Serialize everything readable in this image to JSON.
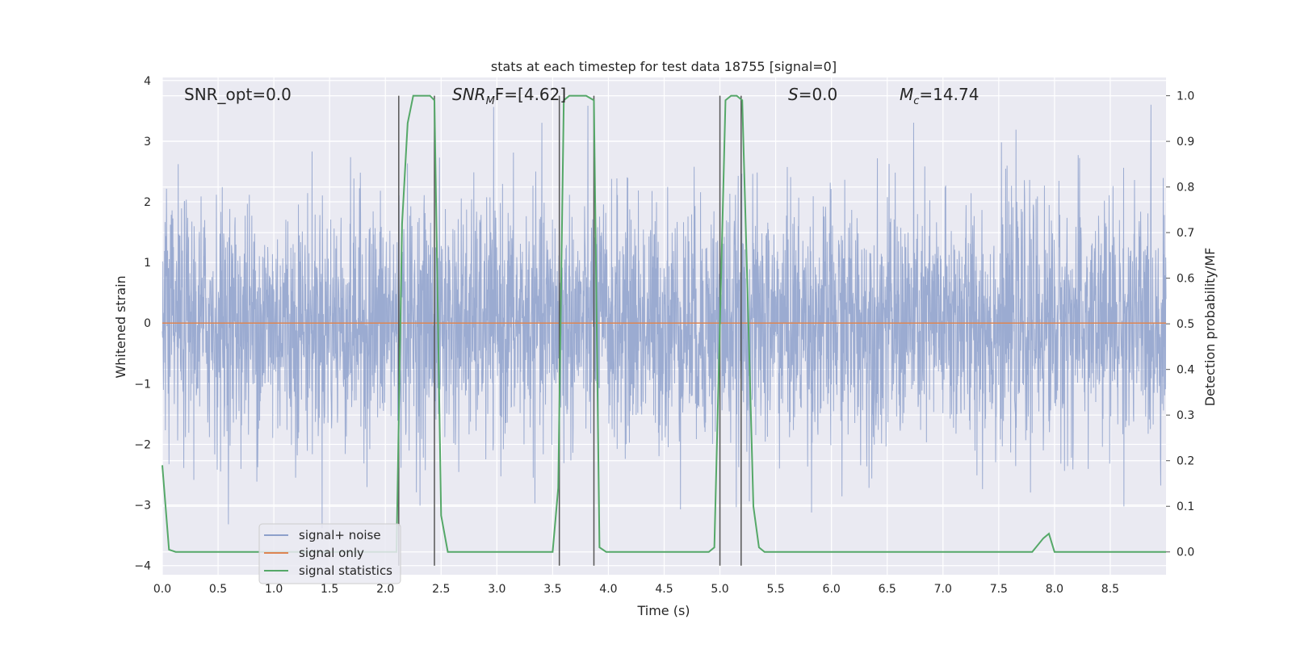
{
  "chart_data": {
    "type": "line",
    "title": "stats at each timestep for test data 18755 [signal=0]",
    "xlabel": "Time (s)",
    "ylabel_left": "Whitened strain",
    "ylabel_right": "Detection probability/MF",
    "xlim": [
      0,
      9
    ],
    "ylim_left": [
      -4.15,
      4.05
    ],
    "ylim_right": [
      -0.05,
      1.04
    ],
    "grid": true,
    "legend_position": "lower-left",
    "x_ticks": [
      "0.0",
      "0.5",
      "1.0",
      "1.5",
      "2.0",
      "2.5",
      "3.0",
      "3.5",
      "4.0",
      "4.5",
      "5.0",
      "5.5",
      "6.0",
      "6.5",
      "7.0",
      "7.5",
      "8.0",
      "8.5"
    ],
    "y_ticks_left": [
      "4",
      "3",
      "2",
      "1",
      "0",
      "−1",
      "−2",
      "−3",
      "−4"
    ],
    "y_ticks_right": [
      "1.0",
      "0.9",
      "0.8",
      "0.7",
      "0.6",
      "0.5",
      "0.4",
      "0.3",
      "0.2",
      "0.1",
      "0.0"
    ],
    "annotations": {
      "snr_opt": "SNR_opt=0.0",
      "snr_mf_base": "SNR",
      "snr_mf_sub": "M",
      "snr_mf_tail": "F=[4.62]",
      "s_base": "S",
      "s_tail": "=0.0",
      "mc_base": "M",
      "mc_sub": "c",
      "mc_tail": "=14.74"
    },
    "series": [
      {
        "name": "signal+ noise",
        "color": "#8da0cb",
        "axis": "left",
        "description": "whitened strain noise, approx. gaussian, amplitude within about ±3.5"
      },
      {
        "name": "signal only",
        "color": "#dd8452",
        "axis": "left",
        "x": [
          0,
          9
        ],
        "y": [
          0,
          0
        ]
      },
      {
        "name": "signal statistics",
        "color": "#55a868",
        "axis": "right",
        "x": [
          0,
          0.06,
          0.12,
          0.5,
          1.0,
          1.5,
          2.0,
          2.1,
          2.15,
          2.2,
          2.25,
          2.3,
          2.4,
          2.44,
          2.5,
          2.56,
          3.0,
          3.5,
          3.55,
          3.6,
          3.65,
          3.7,
          3.8,
          3.87,
          3.92,
          3.98,
          4.5,
          4.9,
          4.95,
          5.05,
          5.1,
          5.15,
          5.2,
          5.25,
          5.3,
          5.35,
          5.4,
          5.5,
          6.0,
          7.0,
          7.8,
          7.9,
          7.95,
          8.0,
          8.5,
          9.0
        ],
        "y": [
          0.19,
          0.005,
          0.0,
          0.0,
          0.0,
          0.0,
          0.0,
          0.0,
          0.72,
          0.94,
          1.0,
          1.0,
          1.0,
          0.99,
          0.08,
          0.0,
          0.0,
          0.0,
          0.14,
          0.99,
          1.0,
          1.0,
          1.0,
          0.99,
          0.01,
          0.0,
          0.0,
          0.0,
          0.01,
          0.99,
          1.0,
          1.0,
          0.99,
          0.55,
          0.1,
          0.01,
          0.0,
          0.0,
          0.0,
          0.0,
          0.0,
          0.03,
          0.04,
          0.0,
          0.0,
          0.0
        ]
      }
    ],
    "vertical_markers": {
      "color": "#555555",
      "axis": "right",
      "x": [
        2.12,
        2.44,
        3.56,
        3.87,
        5.0,
        5.19
      ],
      "y_top": 1.0
    }
  }
}
